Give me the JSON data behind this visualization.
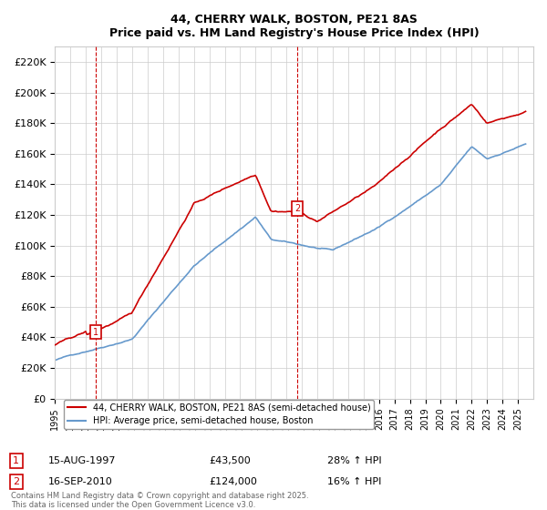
{
  "title": "44, CHERRY WALK, BOSTON, PE21 8AS",
  "subtitle": "Price paid vs. HM Land Registry's House Price Index (HPI)",
  "xlabel": "",
  "ylabel": "",
  "ylim": [
    0,
    230000
  ],
  "yticks": [
    0,
    20000,
    40000,
    60000,
    80000,
    100000,
    120000,
    140000,
    160000,
    180000,
    200000,
    220000
  ],
  "ytick_labels": [
    "£0",
    "£20K",
    "£40K",
    "£60K",
    "£80K",
    "£100K",
    "£120K",
    "£140K",
    "£160K",
    "£180K",
    "£200K",
    "£220K"
  ],
  "purchase1_year": 1997.62,
  "purchase1_price": 43500,
  "purchase1_label": "1",
  "purchase2_year": 2010.71,
  "purchase2_price": 124000,
  "purchase2_label": "2",
  "red_line_color": "#cc0000",
  "blue_line_color": "#6699cc",
  "marker_box_color": "#cc0000",
  "annotation1_date": "15-AUG-1997",
  "annotation1_price": "£43,500",
  "annotation1_hpi": "28% ↑ HPI",
  "annotation2_date": "16-SEP-2010",
  "annotation2_price": "£124,000",
  "annotation2_hpi": "16% ↑ HPI",
  "legend1": "44, CHERRY WALK, BOSTON, PE21 8AS (semi-detached house)",
  "legend2": "HPI: Average price, semi-detached house, Boston",
  "footnote": "Contains HM Land Registry data © Crown copyright and database right 2025.\nThis data is licensed under the Open Government Licence v3.0.",
  "background_color": "#ffffff",
  "grid_color": "#cccccc",
  "xmin": 1995,
  "xmax": 2026
}
